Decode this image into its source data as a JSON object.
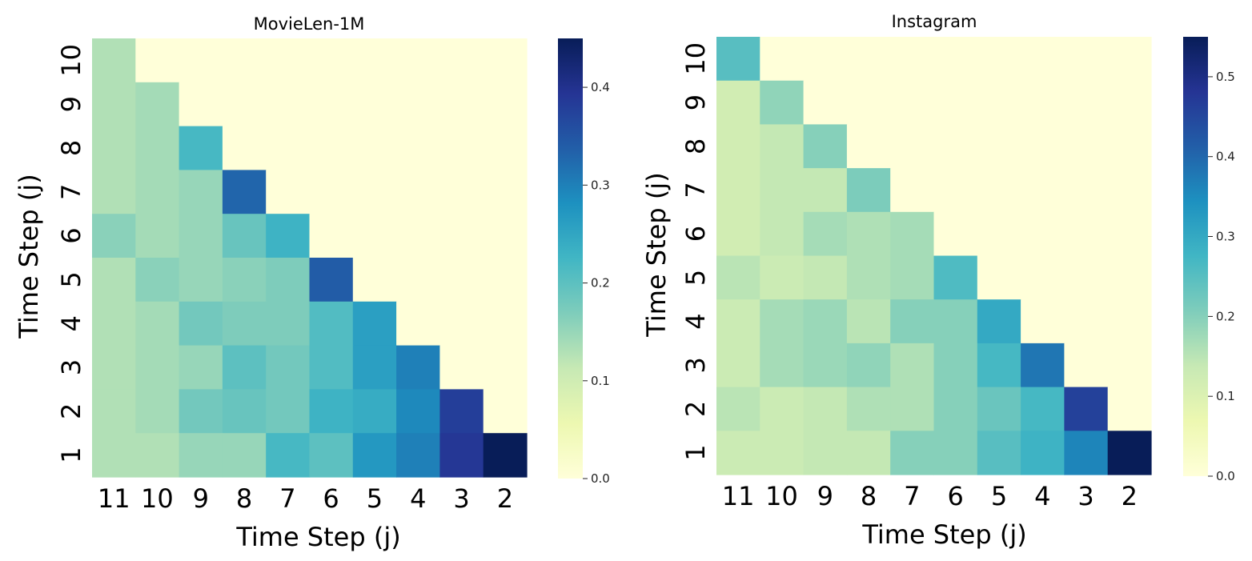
{
  "chart_data": [
    {
      "type": "heatmap",
      "title": "MovieLen-1M",
      "xlabel": "Time Step (j)",
      "ylabel": "Time Step (j)",
      "x_tick_labels": [
        "11",
        "10",
        "9",
        "8",
        "7",
        "6",
        "5",
        "4",
        "3",
        "2"
      ],
      "y_tick_labels": [
        "10",
        "9",
        "8",
        "7",
        "6",
        "5",
        "4",
        "3",
        "2",
        "1"
      ],
      "colorbar": {
        "range": [
          0,
          0.45
        ],
        "ticks": [
          "0.0",
          "0.1",
          "0.2",
          "0.3",
          "0.4"
        ],
        "colormap": "YlGnBu"
      },
      "values": [
        [
          0.13,
          0,
          0,
          0,
          0,
          0,
          0,
          0,
          0,
          0
        ],
        [
          0.13,
          0.14,
          0,
          0,
          0,
          0,
          0,
          0,
          0,
          0
        ],
        [
          0.13,
          0.14,
          0.22,
          0,
          0,
          0,
          0,
          0,
          0,
          0
        ],
        [
          0.13,
          0.14,
          0.15,
          0.33,
          0,
          0,
          0,
          0,
          0,
          0
        ],
        [
          0.16,
          0.14,
          0.15,
          0.19,
          0.23,
          0,
          0,
          0,
          0,
          0
        ],
        [
          0.13,
          0.16,
          0.15,
          0.16,
          0.17,
          0.34,
          0,
          0,
          0,
          0
        ],
        [
          0.13,
          0.14,
          0.18,
          0.17,
          0.17,
          0.21,
          0.26,
          0,
          0,
          0
        ],
        [
          0.13,
          0.14,
          0.15,
          0.2,
          0.18,
          0.21,
          0.26,
          0.3,
          0,
          0
        ],
        [
          0.13,
          0.14,
          0.18,
          0.19,
          0.18,
          0.23,
          0.24,
          0.29,
          0.38,
          0
        ],
        [
          0.13,
          0.13,
          0.15,
          0.15,
          0.22,
          0.2,
          0.27,
          0.3,
          0.39,
          0.45
        ]
      ]
    },
    {
      "type": "heatmap",
      "title": "Instagram",
      "xlabel": "Time Step (j)",
      "ylabel": "Time Step (j)",
      "x_tick_labels": [
        "11",
        "10",
        "9",
        "8",
        "7",
        "6",
        "5",
        "4",
        "3",
        "2"
      ],
      "y_tick_labels": [
        "10",
        "9",
        "8",
        "7",
        "6",
        "5",
        "4",
        "3",
        "2",
        "1"
      ],
      "colorbar": {
        "range": [
          0,
          0.55
        ],
        "ticks": [
          "0.0",
          "0.1",
          "0.2",
          "0.3",
          "0.4",
          "0.5"
        ],
        "colormap": "YlGnBu"
      },
      "values": [
        [
          0.25,
          0,
          0,
          0,
          0,
          0,
          0,
          0,
          0,
          0
        ],
        [
          0.12,
          0.19,
          0,
          0,
          0,
          0,
          0,
          0,
          0,
          0
        ],
        [
          0.12,
          0.14,
          0.2,
          0,
          0,
          0,
          0,
          0,
          0,
          0
        ],
        [
          0.12,
          0.14,
          0.14,
          0.21,
          0,
          0,
          0,
          0,
          0,
          0
        ],
        [
          0.12,
          0.14,
          0.17,
          0.16,
          0.17,
          0,
          0,
          0,
          0,
          0
        ],
        [
          0.15,
          0.13,
          0.14,
          0.16,
          0.17,
          0.26,
          0,
          0,
          0,
          0
        ],
        [
          0.13,
          0.17,
          0.18,
          0.15,
          0.2,
          0.2,
          0.3,
          0,
          0,
          0
        ],
        [
          0.13,
          0.17,
          0.18,
          0.19,
          0.16,
          0.2,
          0.27,
          0.38,
          0,
          0
        ],
        [
          0.15,
          0.13,
          0.14,
          0.16,
          0.16,
          0.2,
          0.23,
          0.27,
          0.46,
          0
        ],
        [
          0.13,
          0.13,
          0.14,
          0.14,
          0.2,
          0.2,
          0.25,
          0.28,
          0.36,
          0.55
        ]
      ]
    }
  ]
}
